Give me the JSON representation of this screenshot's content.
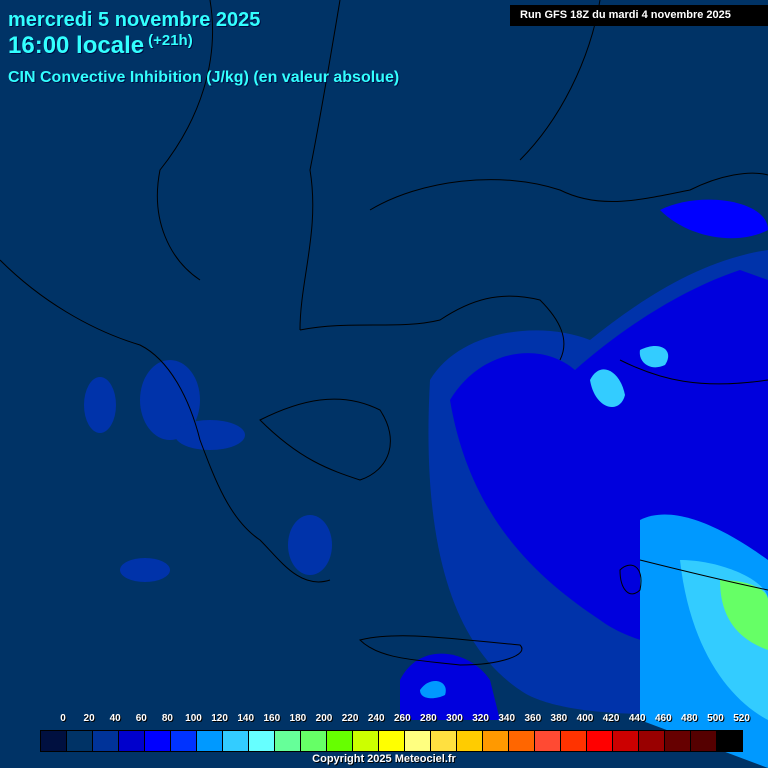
{
  "header": {
    "date": "mercredi 5 novembre 2025",
    "time": "16:00 locale",
    "lead": "(+21h)",
    "parameter": "CIN Convective Inhibition (J/kg) (en valeur absolue)",
    "run": "Run GFS 18Z du mardi 4 novembre 2025"
  },
  "legend": {
    "labels": [
      "0",
      "20",
      "40",
      "60",
      "80",
      "100",
      "120",
      "140",
      "160",
      "180",
      "200",
      "220",
      "240",
      "260",
      "280",
      "300",
      "320",
      "340",
      "360",
      "380",
      "400",
      "420",
      "440",
      "460",
      "480",
      "500",
      "520"
    ],
    "colors": [
      "#001040",
      "#003366",
      "#003399",
      "#0000cc",
      "#0000ff",
      "#0033ff",
      "#0099ff",
      "#33ccff",
      "#66ffff",
      "#66ff99",
      "#66ff66",
      "#66ff00",
      "#ccff00",
      "#ffff00",
      "#ffff80",
      "#ffe040",
      "#ffcc00",
      "#ff9900",
      "#ff6600",
      "#ff4a33",
      "#ff3300",
      "#ff0000",
      "#cc0000",
      "#990000",
      "#660000",
      "#550000",
      "#000000"
    ]
  },
  "copyright": "Copyright 2025 Meteociel.fr"
}
